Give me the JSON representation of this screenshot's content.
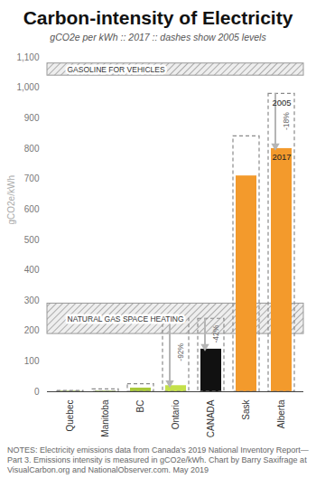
{
  "chart_data": {
    "type": "bar",
    "title": "Carbon-intensity of Electricity",
    "subtitle": "gCO2e per kWh :: 2017 :: dashes show 2005 levels",
    "y_label": "gCO2e/kWh",
    "categories": [
      "Quebec",
      "Manitoba",
      "BC",
      "Ontario",
      "CANADA",
      "Sask",
      "Alberta"
    ],
    "series": [
      {
        "name": "2017",
        "values": [
          2,
          2,
          12,
          20,
          140,
          710,
          800
        ],
        "colors": [
          "#8fae4a",
          "#8fae4a",
          "#a8c83a",
          "#c4e04a",
          "#111111",
          "#f39a2c",
          "#f39a2c"
        ]
      },
      {
        "name": "2005",
        "values": [
          3,
          8,
          25,
          240,
          240,
          840,
          980
        ],
        "color": "#8a8a8a",
        "line_style": "dashed"
      }
    ],
    "change_labels": [
      null,
      null,
      null,
      "-92%",
      "-42%",
      null,
      "-18%"
    ],
    "annotations": [
      {
        "text": "2005",
        "category": "Alberta",
        "series": "2005"
      },
      {
        "text": "2017",
        "category": "Alberta",
        "series": "2017"
      }
    ],
    "bands": [
      {
        "label": "GASOLINE FOR VEHICLES",
        "range": [
          1040,
          1080
        ]
      },
      {
        "label": "NATURAL GAS SPACE HEATING",
        "range": [
          190,
          290
        ]
      }
    ],
    "ylim": [
      0,
      1100
    ],
    "yticks": [
      0,
      100,
      200,
      300,
      400,
      500,
      600,
      700,
      800,
      900,
      {
        "value": 1000,
        "label": "1,000"
      },
      {
        "value": 1100,
        "label": "1,100"
      }
    ],
    "grid": false,
    "notes": "NOTES: Electricity emissions data from Canada's 2019 National Inventory Report— Part 3. Emissions intensity is measured in gCO2e/kWh. Chart by Barry Saxifrage at VisualCarbon.org and NationalObserver.com. May 2019"
  }
}
